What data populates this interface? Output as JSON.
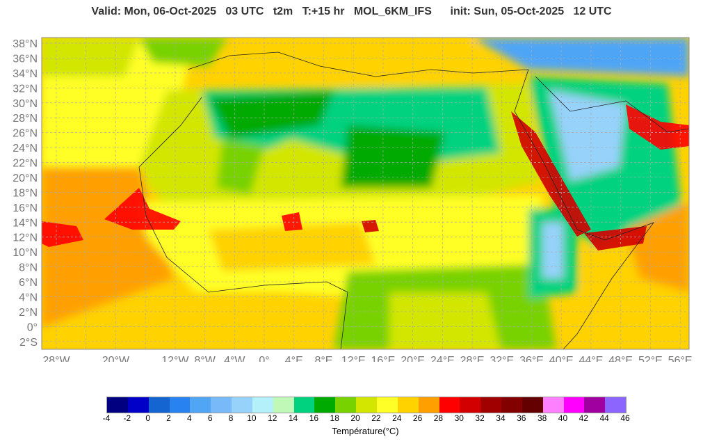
{
  "title": "Valid: Mon, 06-Oct-2025   03 UTC   t2m   T:+15 hr   MOL_6KM_IFS      init: Sun, 05-Oct-2025   12 UTC",
  "map": {
    "lat_labels": [
      "38°N",
      "36°N",
      "34°N",
      "32°N",
      "30°N",
      "28°N",
      "26°N",
      "24°N",
      "22°N",
      "20°N",
      "18°N",
      "16°N",
      "14°N",
      "12°N",
      "10°N",
      "8°N",
      "6°N",
      "4°N",
      "2°N",
      "0°",
      "2°S"
    ],
    "lat_values": [
      38,
      36,
      34,
      32,
      30,
      28,
      26,
      24,
      22,
      20,
      18,
      16,
      14,
      12,
      10,
      8,
      6,
      4,
      2,
      0,
      -2
    ],
    "lon_labels": [
      "28°W",
      "20°W",
      "12°W",
      "8°W",
      "4°W",
      "0°",
      "4°E",
      "8°E",
      "12°E",
      "16°E",
      "20°E",
      "24°E",
      "28°E",
      "32°E",
      "36°E",
      "40°E",
      "44°E",
      "48°E",
      "52°E",
      "56°E"
    ],
    "lon_values": [
      -28,
      -20,
      -12,
      -8,
      -4,
      0,
      4,
      8,
      12,
      16,
      20,
      24,
      28,
      32,
      36,
      40,
      44,
      48,
      52,
      56
    ]
  },
  "colorbar": {
    "colors": [
      "#000080",
      "#0000c8",
      "#1464d2",
      "#2882f0",
      "#50a5f5",
      "#78b9fa",
      "#96d2fa",
      "#b4f0fa",
      "#c0f8b8",
      "#00d280",
      "#00aa00",
      "#78d200",
      "#d2e600",
      "#ffff28",
      "#ffd200",
      "#ffa000",
      "#ff0000",
      "#d20000",
      "#a00000",
      "#820000",
      "#640000",
      "#ff80ff",
      "#ff00ff",
      "#a000a0",
      "#8c64ff"
    ],
    "ticks": [
      "-4",
      "-2",
      "0",
      "2",
      "4",
      "6",
      "8",
      "10",
      "12",
      "14",
      "16",
      "18",
      "20",
      "22",
      "24",
      "26",
      "28",
      "30",
      "32",
      "34",
      "36",
      "38",
      "40",
      "42",
      "44",
      "46"
    ],
    "label": "Température(°C)"
  }
}
